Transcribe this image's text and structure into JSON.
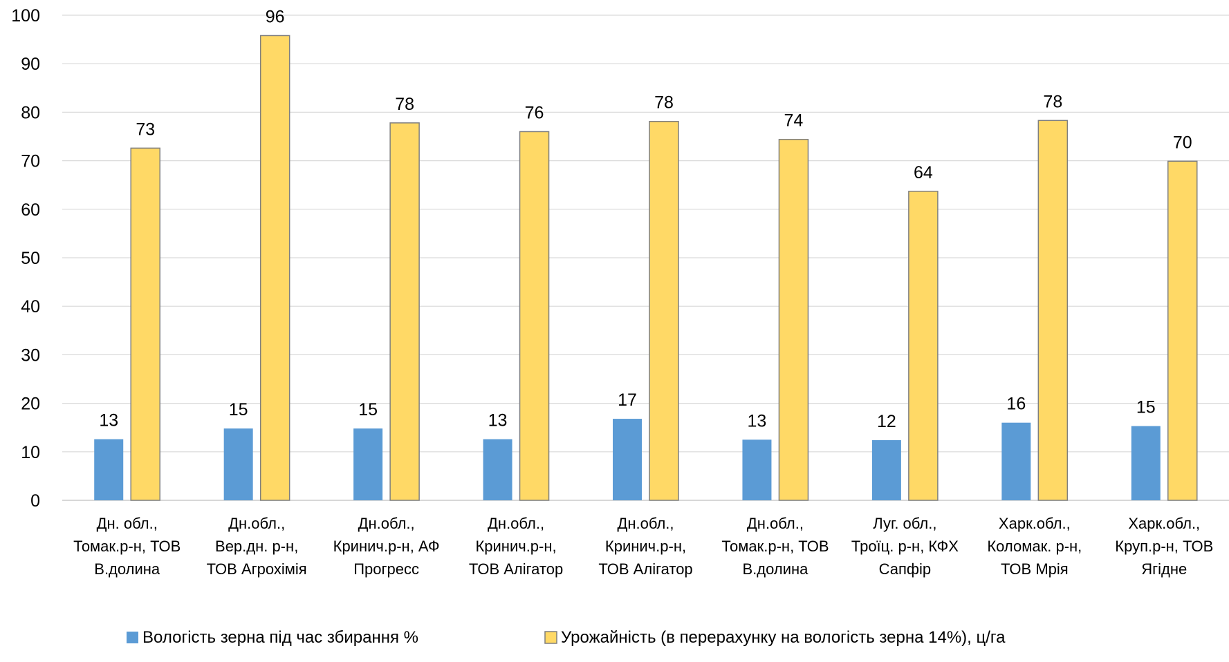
{
  "chart_data": {
    "type": "bar",
    "title": "",
    "xlabel": "",
    "ylabel": "",
    "ylim": [
      0,
      100
    ],
    "yticks": [
      0,
      10,
      20,
      30,
      40,
      50,
      60,
      70,
      80,
      90,
      100
    ],
    "grid": true,
    "legend_position": "bottom",
    "categories": [
      [
        "Дн. обл.,",
        "Томак.р-н, ТОВ",
        "В.долина"
      ],
      [
        "Дн.обл.,",
        "Вер.дн. р-н,",
        "ТОВ Агрохімія"
      ],
      [
        "Дн.обл.,",
        "Кринич.р-н, АФ",
        "Прогресс"
      ],
      [
        "Дн.обл.,",
        "Кринич.р-н,",
        "ТОВ Алігатор"
      ],
      [
        "Дн.обл.,",
        "Кринич.р-н,",
        "ТОВ Алігатор"
      ],
      [
        "Дн.обл.,",
        "Томак.р-н, ТОВ",
        "В.долина"
      ],
      [
        "Луг. обл.,",
        "Троїц. р-н, КФХ",
        "Сапфір"
      ],
      [
        "Харк.обл.,",
        "Коломак. р-н,",
        "ТОВ Мрія"
      ],
      [
        "Харк.обл.,",
        "Круп.р-н, ТОВ",
        "Ягідне"
      ]
    ],
    "series": [
      {
        "name": "Вологість зерна під час збирання %",
        "color": "#5b9bd5",
        "values": [
          12.6,
          14.8,
          14.8,
          12.6,
          16.8,
          12.5,
          12.4,
          16.0,
          15.3
        ],
        "labels": [
          "13",
          "15",
          "15",
          "13",
          "17",
          "13",
          "12",
          "16",
          "15"
        ]
      },
      {
        "name": "Урожайність  (в перерахунку на вологість зерна 14%), ц/га",
        "color": "#ffd966",
        "values": [
          72.6,
          95.8,
          77.8,
          76.0,
          78.1,
          74.4,
          63.7,
          78.3,
          69.9
        ],
        "labels": [
          "73",
          "96",
          "78",
          "76",
          "78",
          "74",
          "64",
          "78",
          "70"
        ]
      }
    ]
  }
}
